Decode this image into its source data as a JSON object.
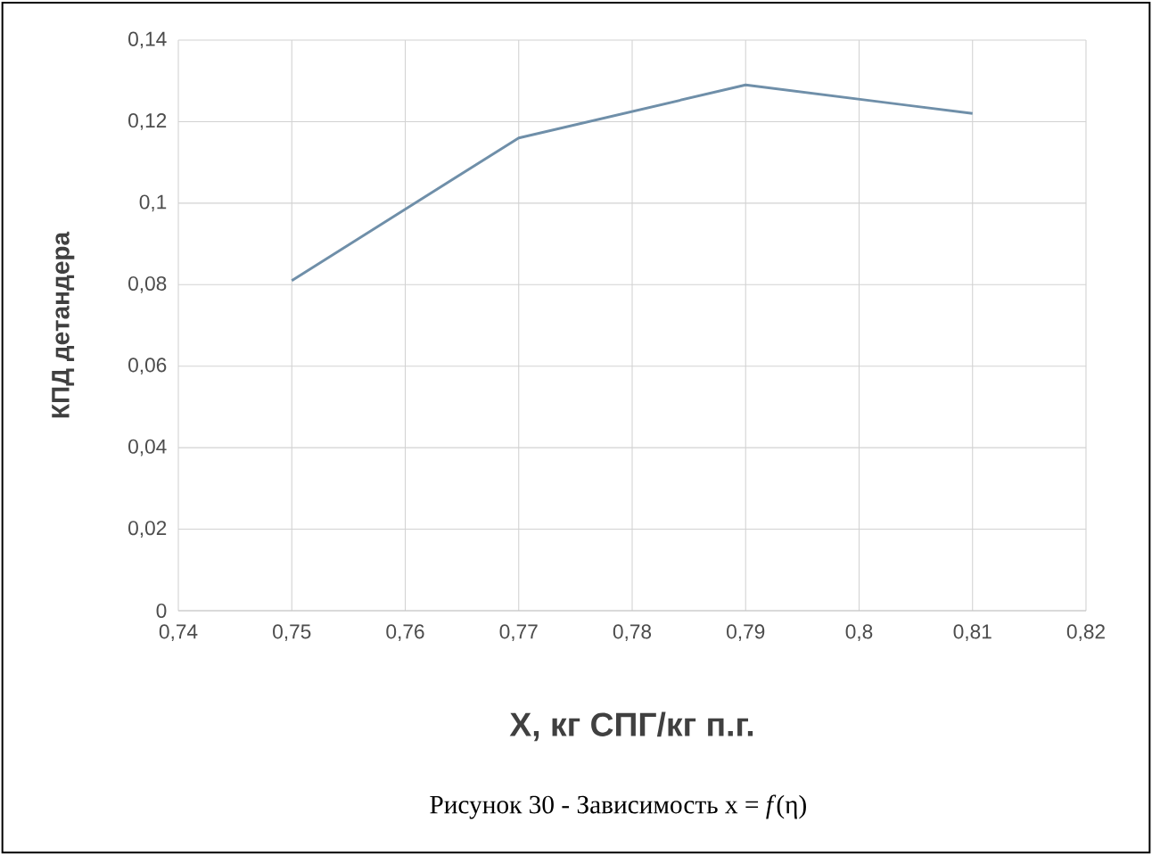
{
  "chart_data": {
    "type": "line",
    "xlabel": "X, кг СПГ/кг п.г.",
    "ylabel": "КПД детандера",
    "annotations": [
      "Рисунок 30 - Зависимость x = *f*(η)"
    ],
    "x": [
      0.75,
      0.77,
      0.79,
      0.81
    ],
    "series": [
      {
        "color": "#6f8fa9",
        "values": [
          0.081,
          0.116,
          0.129,
          0.122
        ]
      }
    ],
    "xlim": [
      0.74,
      0.82
    ],
    "xticks": [
      {
        "value": 0.74,
        "label": "0,74"
      },
      {
        "value": 0.75,
        "label": "0,75"
      },
      {
        "value": 0.76,
        "label": "0,76"
      },
      {
        "value": 0.77,
        "label": "0,77"
      },
      {
        "value": 0.78,
        "label": "0,78"
      },
      {
        "value": 0.79,
        "label": "0,79"
      },
      {
        "value": 0.8,
        "label": "0,8"
      },
      {
        "value": 0.81,
        "label": "0,81"
      },
      {
        "value": 0.82,
        "label": "0,82"
      }
    ],
    "ylim": [
      0,
      0.14
    ],
    "yticks": [
      0,
      {
        "value": 0.02,
        "label": "0,02"
      },
      {
        "value": 0.04,
        "label": "0,04"
      },
      {
        "value": 0.06,
        "label": "0,06"
      },
      {
        "value": 0.08,
        "label": "0,08"
      },
      {
        "value": 0.1,
        "label": "0,1"
      },
      {
        "value": 0.12,
        "label": "0,12"
      },
      {
        "value": 0.14,
        "label": "0,14"
      }
    ],
    "grid": true,
    "marker": "none",
    "line_style": "solid"
  }
}
